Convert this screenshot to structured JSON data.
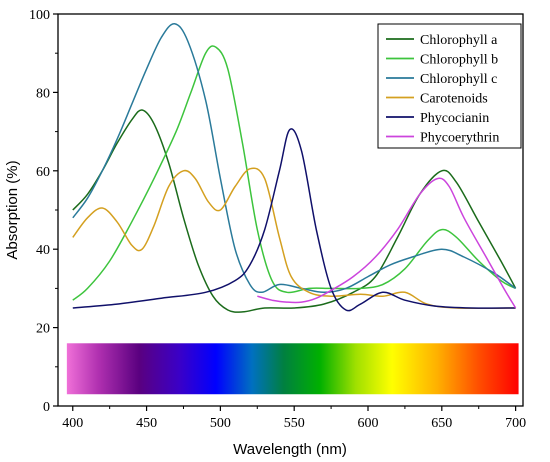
{
  "chart_data": {
    "type": "line",
    "xlabel": "Wavelength (nm)",
    "ylabel": "Absorption (%)",
    "xlim": [
      390,
      705
    ],
    "ylim": [
      0,
      100
    ],
    "x_ticks": [
      400,
      450,
      500,
      550,
      600,
      650,
      700
    ],
    "y_ticks": [
      0,
      20,
      40,
      60,
      80,
      100
    ],
    "grid": false,
    "legend_position": "top-right",
    "spectrum_bar": {
      "y_range": [
        3,
        16
      ],
      "x_range": [
        396,
        702
      ]
    },
    "series": [
      {
        "name": "Chlorophyll a",
        "color": "#1b6b1b",
        "points": [
          [
            400,
            50
          ],
          [
            410,
            54
          ],
          [
            420,
            60
          ],
          [
            430,
            67
          ],
          [
            440,
            73
          ],
          [
            447,
            75.5
          ],
          [
            455,
            72
          ],
          [
            465,
            62
          ],
          [
            475,
            48
          ],
          [
            485,
            36
          ],
          [
            495,
            28
          ],
          [
            505,
            24.5
          ],
          [
            515,
            24
          ],
          [
            530,
            25
          ],
          [
            550,
            25
          ],
          [
            570,
            26
          ],
          [
            590,
            29
          ],
          [
            605,
            33
          ],
          [
            620,
            43
          ],
          [
            635,
            54
          ],
          [
            650,
            60
          ],
          [
            660,
            57
          ],
          [
            675,
            47
          ],
          [
            690,
            37
          ],
          [
            700,
            30
          ]
        ]
      },
      {
        "name": "Chlorophyll b",
        "color": "#3dc43d",
        "points": [
          [
            400,
            27
          ],
          [
            410,
            30
          ],
          [
            425,
            37
          ],
          [
            440,
            47
          ],
          [
            455,
            58
          ],
          [
            470,
            70
          ],
          [
            480,
            80
          ],
          [
            490,
            90
          ],
          [
            497,
            91.5
          ],
          [
            505,
            86
          ],
          [
            515,
            67
          ],
          [
            525,
            45
          ],
          [
            535,
            32
          ],
          [
            545,
            29
          ],
          [
            560,
            30
          ],
          [
            575,
            30
          ],
          [
            595,
            30
          ],
          [
            610,
            31
          ],
          [
            625,
            35
          ],
          [
            640,
            42
          ],
          [
            650,
            45
          ],
          [
            660,
            43
          ],
          [
            675,
            37
          ],
          [
            690,
            32
          ],
          [
            700,
            30
          ]
        ]
      },
      {
        "name": "Chlorophyll c",
        "color": "#2a7a9a",
        "points": [
          [
            400,
            48
          ],
          [
            410,
            53
          ],
          [
            420,
            60
          ],
          [
            430,
            68
          ],
          [
            440,
            77
          ],
          [
            450,
            86
          ],
          [
            460,
            94
          ],
          [
            469,
            97.5
          ],
          [
            478,
            93
          ],
          [
            490,
            78
          ],
          [
            500,
            58
          ],
          [
            510,
            40
          ],
          [
            520,
            31
          ],
          [
            528,
            29
          ],
          [
            540,
            31
          ],
          [
            555,
            30
          ],
          [
            570,
            29
          ],
          [
            585,
            30
          ],
          [
            600,
            33
          ],
          [
            615,
            36
          ],
          [
            630,
            38
          ],
          [
            650,
            40
          ],
          [
            665,
            38
          ],
          [
            685,
            34
          ],
          [
            700,
            30
          ]
        ]
      },
      {
        "name": "Carotenoids",
        "color": "#d4a020",
        "points": [
          [
            400,
            43
          ],
          [
            410,
            48
          ],
          [
            420,
            50.5
          ],
          [
            430,
            47
          ],
          [
            440,
            41
          ],
          [
            447,
            40
          ],
          [
            455,
            46
          ],
          [
            465,
            56
          ],
          [
            475,
            60
          ],
          [
            483,
            58
          ],
          [
            492,
            52
          ],
          [
            500,
            50
          ],
          [
            510,
            56
          ],
          [
            520,
            60.5
          ],
          [
            530,
            58
          ],
          [
            540,
            43
          ],
          [
            548,
            33
          ],
          [
            560,
            29
          ],
          [
            575,
            28
          ],
          [
            595,
            28.5
          ],
          [
            610,
            28
          ],
          [
            625,
            29
          ],
          [
            640,
            26
          ],
          [
            660,
            25
          ],
          [
            700,
            25
          ]
        ]
      },
      {
        "name": "Phycocianin",
        "color": "#10106a",
        "points": [
          [
            400,
            25
          ],
          [
            430,
            26
          ],
          [
            460,
            27.5
          ],
          [
            490,
            29
          ],
          [
            510,
            32
          ],
          [
            520,
            36
          ],
          [
            530,
            45
          ],
          [
            540,
            60
          ],
          [
            547,
            70.5
          ],
          [
            555,
            65
          ],
          [
            565,
            45
          ],
          [
            575,
            30
          ],
          [
            585,
            24.5
          ],
          [
            595,
            26
          ],
          [
            610,
            29
          ],
          [
            625,
            27
          ],
          [
            645,
            25.5
          ],
          [
            670,
            25
          ],
          [
            700,
            25
          ]
        ]
      },
      {
        "name": "Phycoerythrin",
        "color": "#cc44dd",
        "points": [
          [
            525,
            28
          ],
          [
            535,
            27
          ],
          [
            545,
            26.5
          ],
          [
            555,
            26.5
          ],
          [
            565,
            27.5
          ],
          [
            575,
            29.5
          ],
          [
            590,
            33
          ],
          [
            605,
            38
          ],
          [
            620,
            45
          ],
          [
            635,
            54
          ],
          [
            647,
            58
          ],
          [
            655,
            56
          ],
          [
            665,
            48
          ],
          [
            680,
            38
          ],
          [
            692,
            30
          ],
          [
            700,
            25
          ]
        ]
      }
    ]
  }
}
